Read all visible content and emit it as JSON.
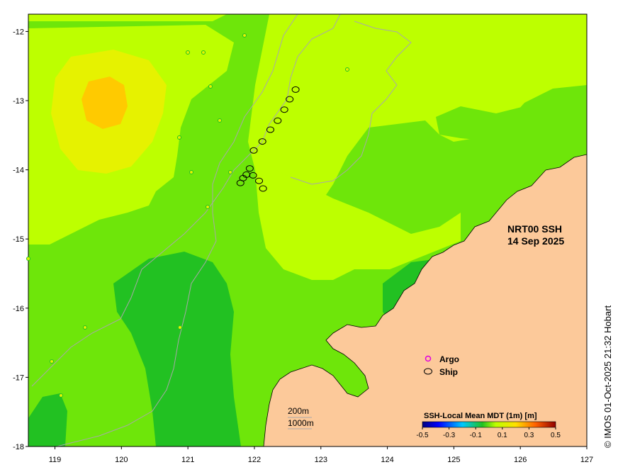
{
  "map": {
    "title_line1": "NRT00 SSH",
    "title_line2": "14 Sep 2025",
    "x_ticks": [
      "119",
      "120",
      "121",
      "122",
      "123",
      "124",
      "125",
      "126",
      "127"
    ],
    "y_ticks": [
      "-12",
      "-13",
      "-14",
      "-15",
      "-16",
      "-17",
      "-18"
    ],
    "lon_range": [
      118.6,
      127.0
    ],
    "lat_range": [
      -18.0,
      -11.75
    ],
    "legend": {
      "argo_label": "Argo",
      "ship_label": "Ship",
      "argo_color": "#e000e0",
      "ship_color": "#000000"
    },
    "depth_contours": {
      "label_200": "200m",
      "label_1000": "1000m",
      "contour_color": "#a8a8a8"
    },
    "colorbar": {
      "title": "SSH-Local Mean MDT (1m) [m]",
      "tick_labels": [
        "-0.5",
        "-0.3",
        "-0.1",
        "0.1",
        "0.3",
        "0.5"
      ],
      "range": [
        -0.5,
        0.5
      ]
    },
    "credit": "© IMOS 01-Oct-2025 21:32 Hobart",
    "colors": {
      "land": "#fcc99a",
      "ssh_low": "#22c122",
      "ssh_mid_low": "#6ee60a",
      "ssh_mid": "#bdff00",
      "ssh_mid_high": "#e6f200",
      "ssh_high": "#ffca00"
    },
    "ship_track": [
      {
        "lon": 122.62,
        "lat": -12.84
      },
      {
        "lon": 122.53,
        "lat": -12.98
      },
      {
        "lon": 122.45,
        "lat": -13.13
      },
      {
        "lon": 122.35,
        "lat": -13.29
      },
      {
        "lon": 122.24,
        "lat": -13.42
      },
      {
        "lon": 122.12,
        "lat": -13.59
      },
      {
        "lon": 121.99,
        "lat": -13.72
      },
      {
        "lon": 121.93,
        "lat": -13.98
      },
      {
        "lon": 121.88,
        "lat": -14.07
      },
      {
        "lon": 121.83,
        "lat": -14.12
      },
      {
        "lon": 121.79,
        "lat": -14.19
      },
      {
        "lon": 121.98,
        "lat": -14.08
      },
      {
        "lon": 122.07,
        "lat": -14.16
      },
      {
        "lon": 122.13,
        "lat": -14.27
      }
    ]
  }
}
